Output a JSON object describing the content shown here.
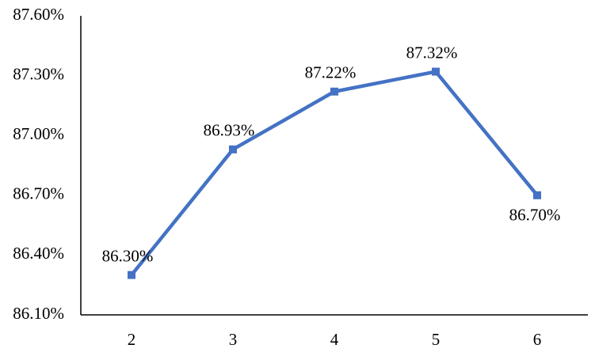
{
  "chart_data": {
    "type": "line",
    "categories": [
      "2",
      "3",
      "4",
      "5",
      "6"
    ],
    "series": [
      {
        "color": "#4472c4",
        "values": [
          86.3,
          86.93,
          87.22,
          87.32,
          86.7
        ],
        "value_labels": [
          "86.30%",
          "86.93%",
          "87.22%",
          "87.32%",
          "86.70%"
        ]
      }
    ],
    "ylim": [
      86.1,
      87.6
    ],
    "yticks": [
      {
        "value": 86.1,
        "label": "86.10%"
      },
      {
        "value": 86.4,
        "label": "86.40%"
      },
      {
        "value": 86.7,
        "label": "86.70%"
      },
      {
        "value": 87.0,
        "label": "87.00%"
      },
      {
        "value": 87.3,
        "label": "87.30%"
      },
      {
        "value": 87.6,
        "label": "87.60%"
      }
    ],
    "grid": false
  }
}
